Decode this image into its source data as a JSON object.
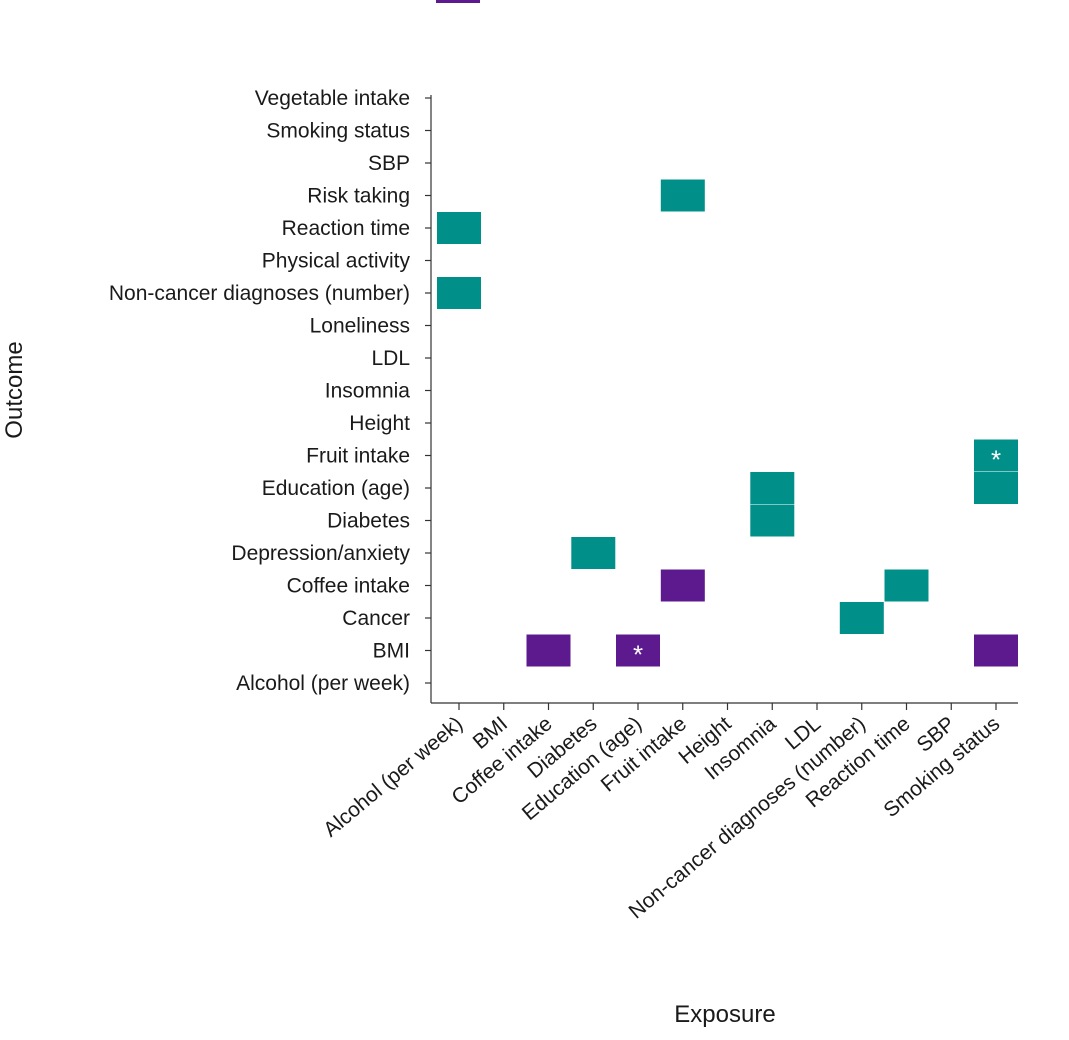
{
  "chart_data": {
    "type": "heatmap",
    "xlabel": "Exposure",
    "ylabel": "Outcome",
    "x_categories": [
      "Alcohol (per week)",
      "BMI",
      "Coffee intake",
      "Diabetes",
      "Education (age)",
      "Fruit intake",
      "Height",
      "Insomnia",
      "LDL",
      "Non-cancer diagnoses (number)",
      "Reaction time",
      "SBP",
      "Smoking status"
    ],
    "y_categories": [
      "Alcohol (per week)",
      "BMI",
      "Cancer",
      "Coffee intake",
      "Depression/anxiety",
      "Diabetes",
      "Education (age)",
      "Fruit intake",
      "Height",
      "Insomnia",
      "LDL",
      "Loneliness",
      "Non-cancer diagnoses (number)",
      "Physical activity",
      "Reaction time",
      "Risk taking",
      "SBP",
      "Smoking status",
      "Vegetable intake"
    ],
    "colors": {
      "positive": "#009089",
      "negative": "#5c1a8e"
    },
    "cells": [
      {
        "x": "Alcohol (per week)",
        "y": "Reaction time",
        "sign": "positive",
        "marker": ""
      },
      {
        "x": "Alcohol (per week)",
        "y": "Non-cancer diagnoses (number)",
        "sign": "positive",
        "marker": ""
      },
      {
        "x": "Fruit intake",
        "y": "Risk taking",
        "sign": "positive",
        "marker": ""
      },
      {
        "x": "Smoking status",
        "y": "Fruit intake",
        "sign": "positive",
        "marker": "*"
      },
      {
        "x": "Smoking status",
        "y": "Education (age)",
        "sign": "positive",
        "marker": ""
      },
      {
        "x": "Insomnia",
        "y": "Education (age)",
        "sign": "positive",
        "marker": ""
      },
      {
        "x": "Insomnia",
        "y": "Diabetes",
        "sign": "positive",
        "marker": ""
      },
      {
        "x": "Diabetes",
        "y": "Depression/anxiety",
        "sign": "positive",
        "marker": ""
      },
      {
        "x": "Fruit intake",
        "y": "Coffee intake",
        "sign": "negative",
        "marker": ""
      },
      {
        "x": "Reaction time",
        "y": "Coffee intake",
        "sign": "positive",
        "marker": ""
      },
      {
        "x": "Non-cancer diagnoses (number)",
        "y": "Cancer",
        "sign": "positive",
        "marker": ""
      },
      {
        "x": "Coffee intake",
        "y": "BMI",
        "sign": "negative",
        "marker": ""
      },
      {
        "x": "Education (age)",
        "y": "BMI",
        "sign": "negative",
        "marker": "*"
      },
      {
        "x": "Smoking status",
        "y": "BMI",
        "sign": "negative",
        "marker": ""
      }
    ]
  }
}
